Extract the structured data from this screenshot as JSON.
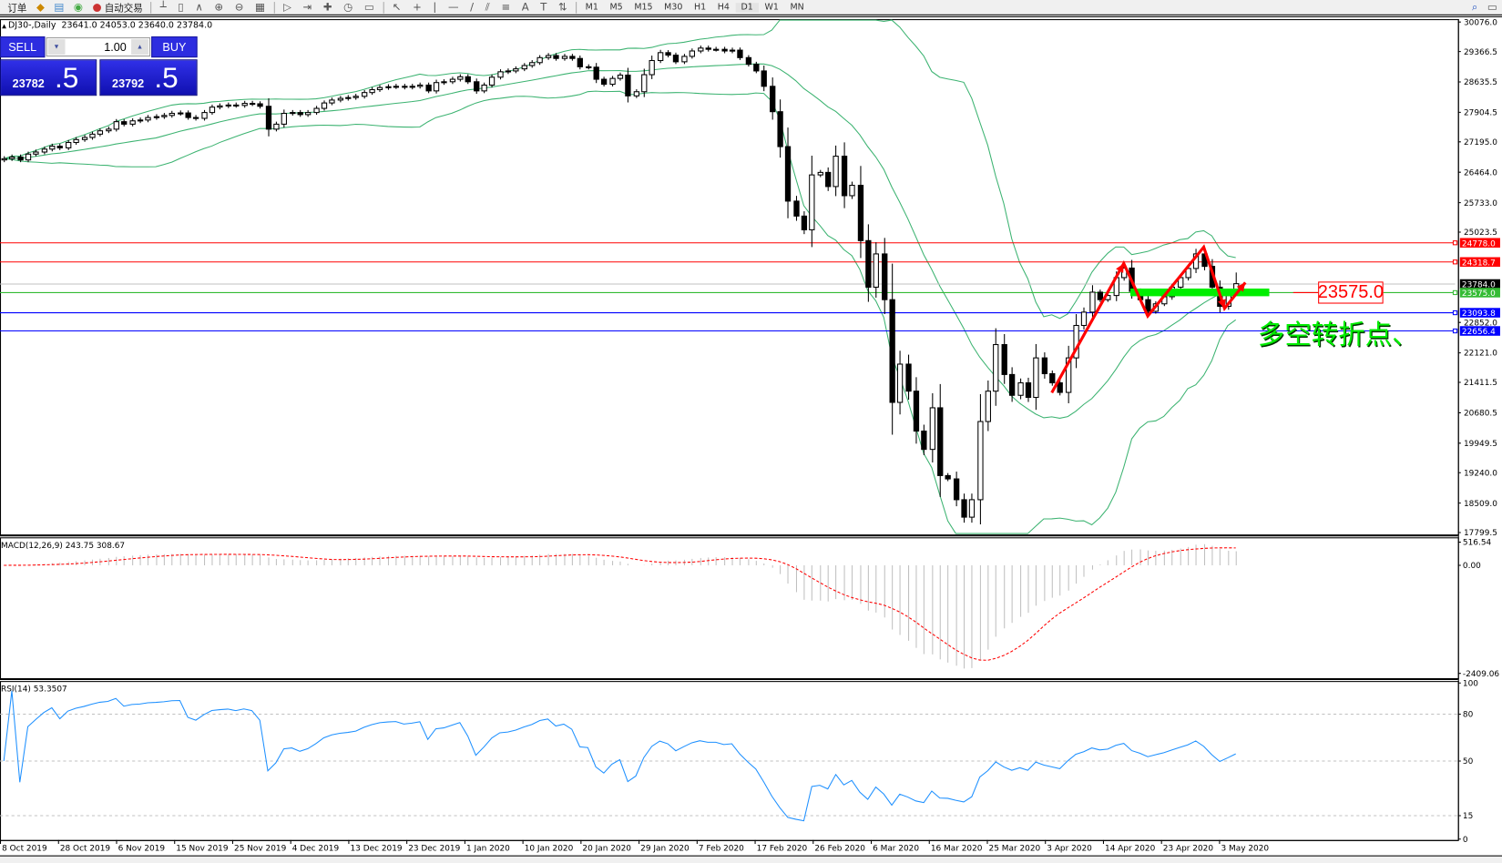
{
  "toolbar": {
    "items": [
      {
        "icon": "new-order-icon",
        "label": "订单"
      },
      {
        "icon": "market-watch-icon",
        "label": ""
      },
      {
        "icon": "navigator-icon",
        "label": ""
      },
      {
        "icon": "signal-icon",
        "label": ""
      },
      {
        "icon": "auto-trading-icon",
        "label": "自动交易"
      }
    ],
    "chart_tools": [
      "bar-chart-icon",
      "candlestick-icon",
      "line-chart-icon",
      "zoom-in-icon",
      "zoom-out-icon",
      "tile-windows-icon",
      "autoscroll-icon",
      "chart-shift-icon",
      "indicators-icon",
      "periods-icon",
      "templates-icon",
      "cursor-icon",
      "crosshair-icon",
      "vertical-line-icon",
      "horizontal-line-icon",
      "trendline-icon",
      "equidistant-channel-icon",
      "fibonacci-icon",
      "text-icon",
      "text-label-icon",
      "arrows-icon"
    ],
    "timeframes": [
      "M1",
      "M5",
      "M15",
      "M30",
      "H1",
      "H4",
      "D1",
      "W1",
      "MN"
    ],
    "active_timeframe": "D1"
  },
  "chart_header": {
    "symbol": "DJ30-,Daily",
    "ohlc": "23641.0 24053.0 23640.0 23784.0"
  },
  "trade_panel": {
    "sell_label": "SELL",
    "buy_label": "BUY",
    "volume": "1.00",
    "sell_price_main": "23782",
    "sell_price_frac": ".5",
    "buy_price_main": "23792",
    "buy_price_frac": ".5",
    "color": "#2d2de0"
  },
  "chart_data": [
    {
      "type": "candlestick",
      "symbol": "DJ30-",
      "timeframe": "Daily",
      "ylim": [
        17799.5,
        30076.0
      ],
      "y_ticks": [
        "30076.0",
        "29366.5",
        "28635.5",
        "27904.5",
        "27195.0",
        "26464.0",
        "25733.0",
        "25023.5",
        "22852.0",
        "22121.0",
        "21411.5",
        "20680.5",
        "19949.5",
        "19240.0",
        "18509.0",
        "17799.5"
      ],
      "x_tick_labels": [
        "8 Oct 2019",
        "28 Oct 2019",
        "6 Nov 2019",
        "15 Nov 2019",
        "25 Nov 2019",
        "4 Dec 2019",
        "13 Dec 2019",
        "23 Dec 2019",
        "1 Jan 2020",
        "10 Jan 2020",
        "20 Jan 2020",
        "29 Jan 2020",
        "7 Feb 2020",
        "17 Feb 2020",
        "26 Feb 2020",
        "6 Mar 2020",
        "16 Mar 2020",
        "25 Mar 2020",
        "3 Apr 2020",
        "14 Apr 2020",
        "23 Apr 2020",
        "3 May 2020"
      ],
      "closes": [
        26790,
        26830,
        26760,
        26900,
        26950,
        27020,
        27090,
        27050,
        27180,
        27250,
        27300,
        27380,
        27460,
        27500,
        27680,
        27620,
        27700,
        27720,
        27780,
        27800,
        27830,
        27880,
        27890,
        27780,
        27760,
        27900,
        28030,
        28060,
        28080,
        28070,
        28120,
        28110,
        28050,
        27500,
        27620,
        27880,
        27900,
        27850,
        27900,
        28000,
        28130,
        28200,
        28240,
        28260,
        28290,
        28380,
        28450,
        28500,
        28520,
        28530,
        28510,
        28530,
        28560,
        28420,
        28620,
        28640,
        28700,
        28760,
        28640,
        28420,
        28560,
        28750,
        28880,
        28900,
        28950,
        29030,
        29100,
        29220,
        29270,
        29200,
        29250,
        29200,
        29000,
        28990,
        28700,
        28580,
        28720,
        28800,
        28300,
        28400,
        28810,
        29150,
        29340,
        29280,
        29120,
        29250,
        29380,
        29450,
        29420,
        29420,
        29380,
        29400,
        29220,
        29060,
        28900,
        28530,
        27920,
        27080,
        25770,
        25410,
        25080,
        26400,
        26460,
        26120,
        26850,
        25900,
        26150,
        24820,
        23700,
        24500,
        23400,
        20930,
        21850,
        21200,
        20240,
        19800,
        20800,
        19170,
        19090,
        18590,
        18170,
        18590,
        20470,
        21200,
        22320,
        21600,
        21100,
        21400,
        21050,
        22000,
        21620,
        21400,
        21170,
        22000,
        22780,
        23100,
        23580,
        23400,
        23500,
        23930,
        24160,
        23600,
        23400,
        23120,
        23300,
        23470,
        23700,
        23930,
        24150,
        24500,
        24200,
        23700,
        23240,
        23500,
        23784
      ],
      "last_bar": {
        "open": 23641.0,
        "high": 24053.0,
        "low": 23640.0,
        "close": 23784.0
      },
      "indicators": {
        "bollinger_bands": {
          "color": "#3cb371"
        }
      },
      "bull_color": "#ffffff",
      "bear_color": "#000000",
      "horizontal_lines": [
        {
          "price": 24778.0,
          "label": "24778.0",
          "color": "#ff0000"
        },
        {
          "price": 24318.7,
          "label": "24318.7",
          "color": "#ff0000"
        },
        {
          "price": 23784.0,
          "label": "23784.0",
          "color": "#000000",
          "line_color": "#c0c0c0"
        },
        {
          "price": 23575.0,
          "label": "23575.0",
          "color": "#33bb33"
        },
        {
          "price": 23093.8,
          "label": "23093.8",
          "color": "#0000ff"
        },
        {
          "price": 22656.4,
          "label": "22656.4",
          "color": "#0000ff"
        }
      ],
      "annotations": {
        "price_label": "23575.0",
        "note": "多空转折点、",
        "support_bar_price": 23575.0,
        "zigzag_color": "#ff0000",
        "zigzag": [
          {
            "bar": 131,
            "price": 21163
          },
          {
            "bar": 140,
            "price": 24272
          },
          {
            "bar": 143,
            "price": 23006
          },
          {
            "bar": 150,
            "price": 24664
          },
          {
            "bar": 152.6,
            "price": 23190
          },
          {
            "bar": 155.2,
            "price": 23812
          }
        ]
      }
    },
    {
      "type": "macd",
      "title": "MACD(12,26,9) 243.75 308.67",
      "params": [
        12,
        26,
        9
      ],
      "main_value": 243.75,
      "signal_value": 308.67,
      "ylim": [
        -2409.06,
        516.54
      ],
      "y_ticks": [
        "516.54",
        "0.00",
        "-2409.06"
      ],
      "histogram_color": "#c0c0c0",
      "signal_color": "#ff0000"
    },
    {
      "type": "line",
      "title": "RSI(14) 53.3507",
      "period": 14,
      "value": 53.3507,
      "ylim": [
        0,
        100
      ],
      "levels": [
        80,
        50,
        15
      ],
      "y_ticks": [
        "100",
        "80",
        "50",
        "15",
        "0"
      ],
      "color": "#1e90ff"
    }
  ]
}
